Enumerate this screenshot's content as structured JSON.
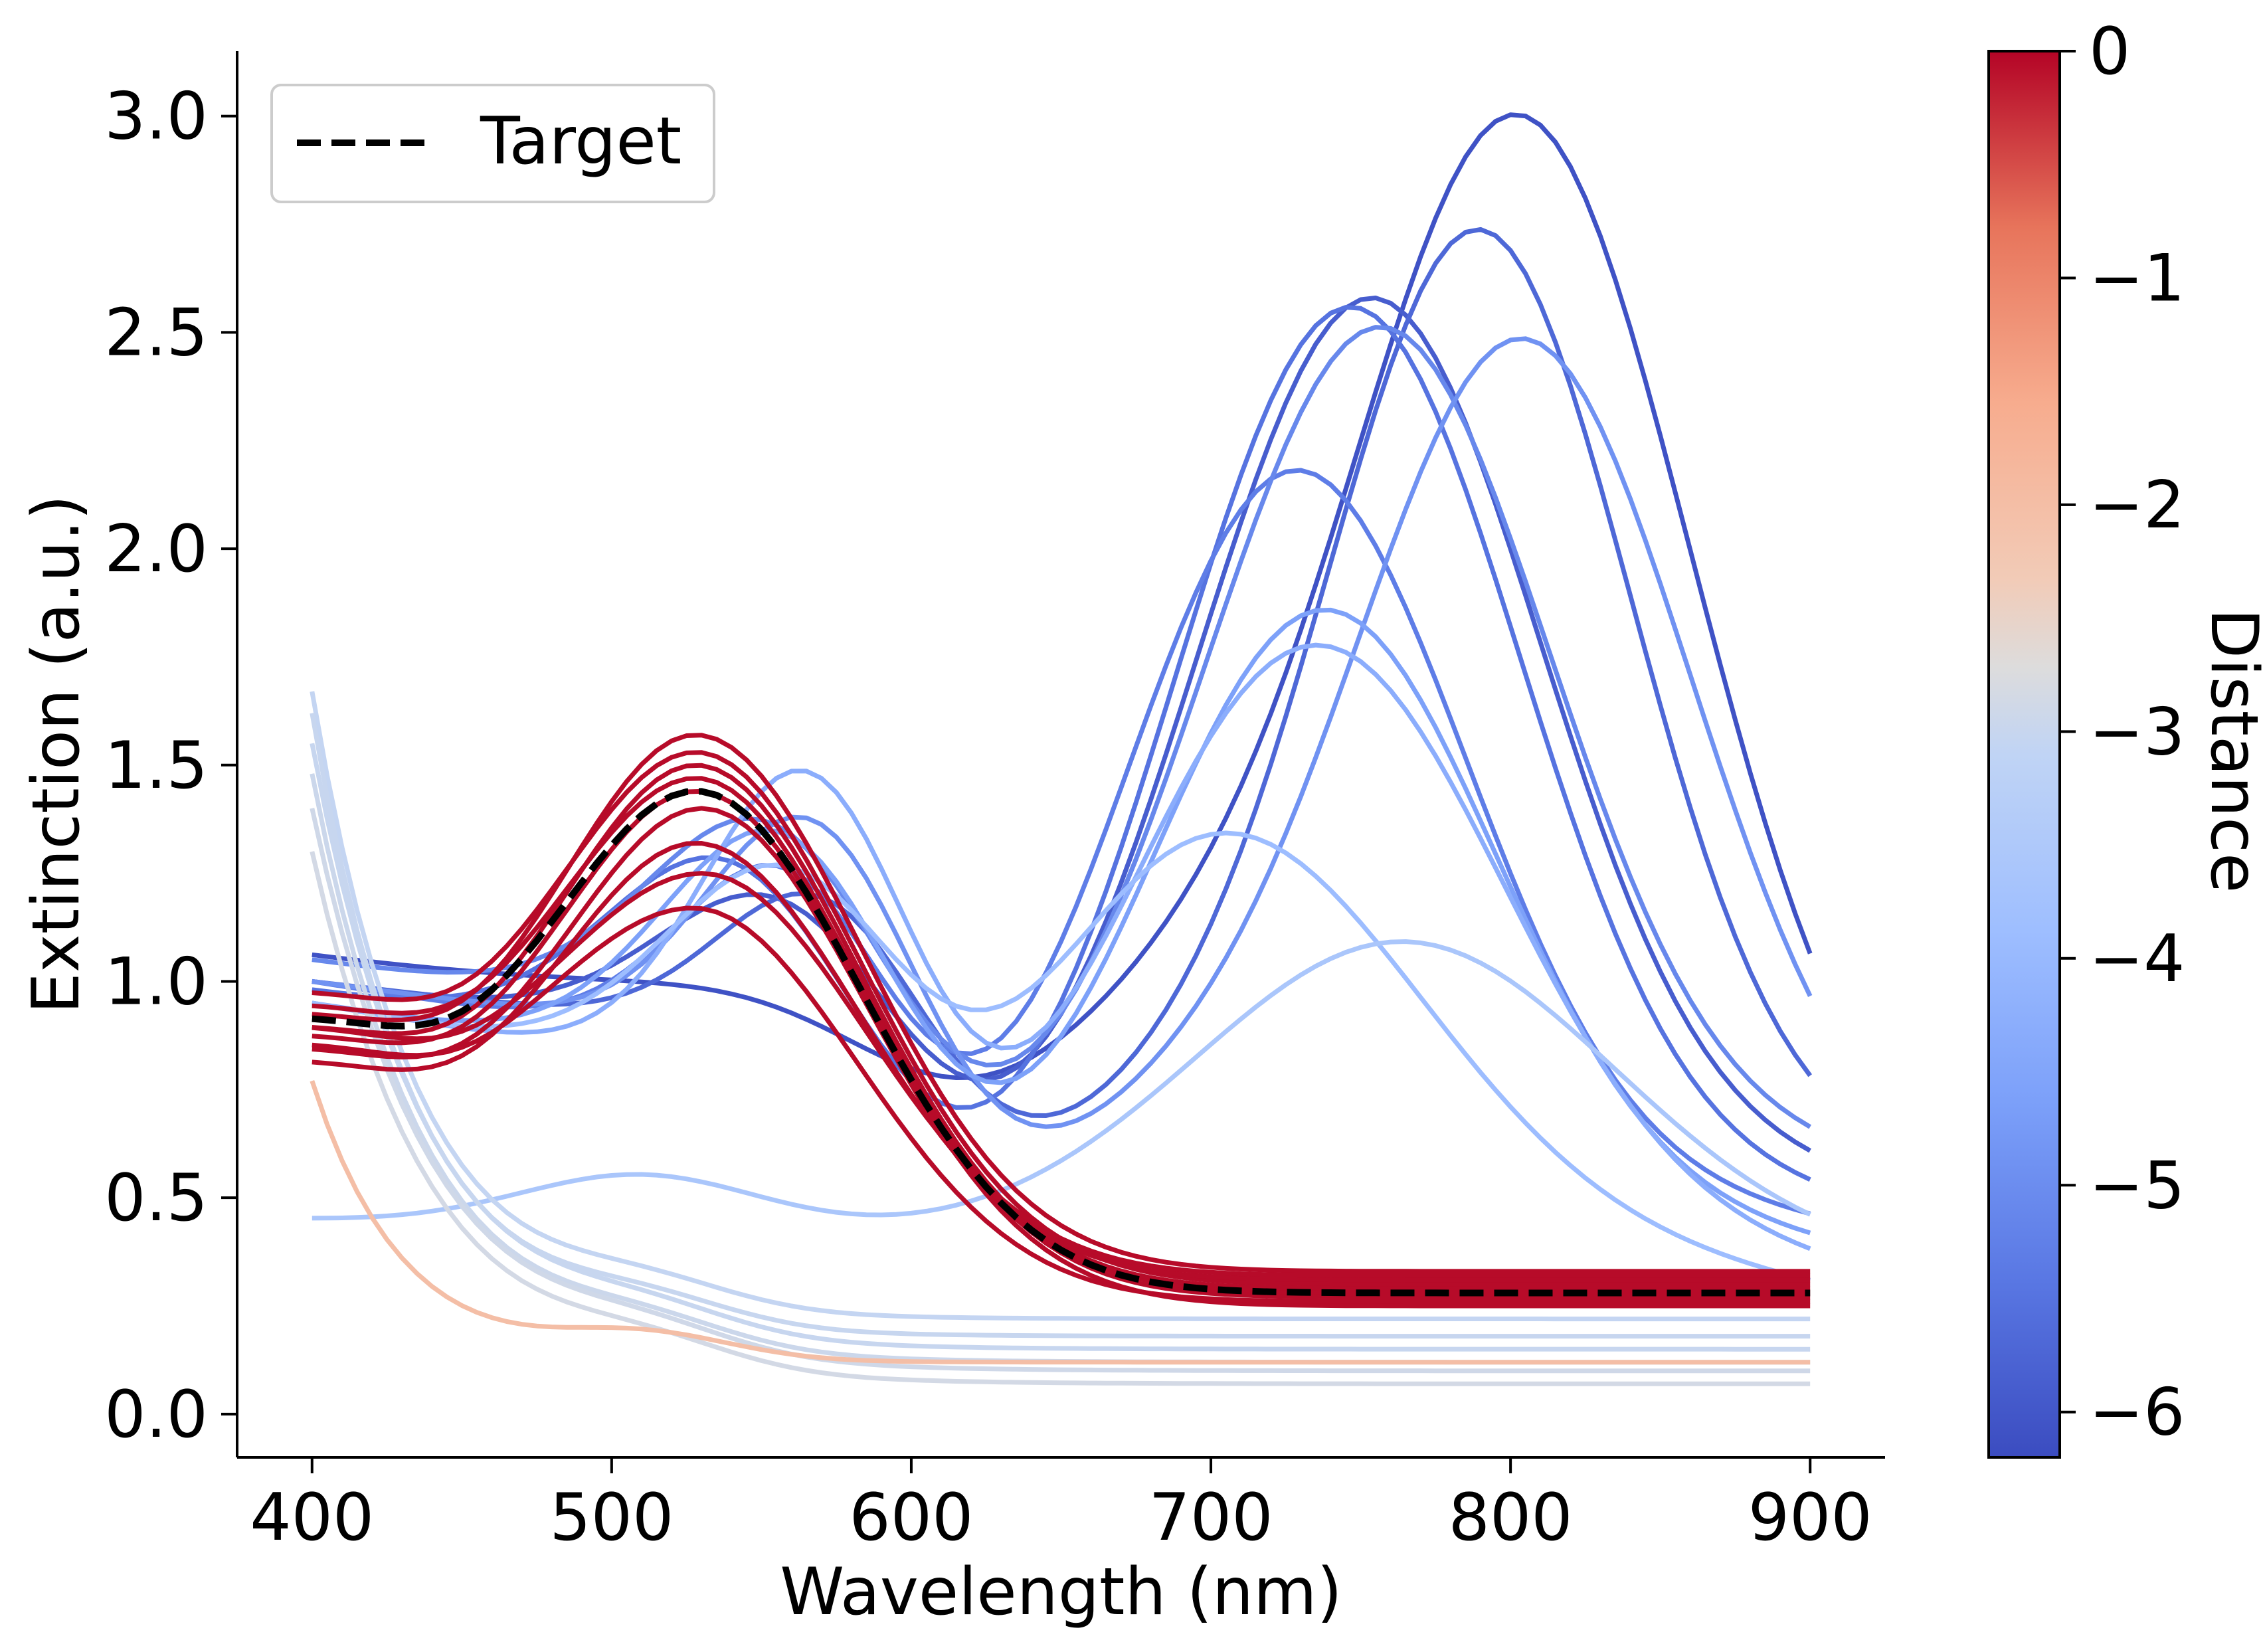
{
  "chart_data": {
    "type": "line",
    "xlabel": "Wavelength (nm)",
    "ylabel": "Extinction (a.u.)",
    "xlim": [
      375,
      925
    ],
    "ylim": [
      -0.1,
      3.15
    ],
    "x_ticks": [
      "400",
      "500",
      "600",
      "700",
      "800",
      "900"
    ],
    "x_tick_values": [
      400,
      500,
      600,
      700,
      800,
      900
    ],
    "y_ticks": [
      "0.0",
      "0.5",
      "1.0",
      "1.5",
      "2.0",
      "2.5",
      "3.0"
    ],
    "y_tick_values": [
      0,
      0.5,
      1.0,
      1.5,
      2.0,
      2.5,
      3.0
    ],
    "grid": false,
    "legend": {
      "placement": "top-left",
      "entries": [
        "Target"
      ]
    },
    "colorbar": {
      "label": "Distance",
      "range": [
        -6.2,
        0
      ],
      "ticks": [
        "0",
        "−1",
        "−2",
        "−3",
        "−4",
        "−5",
        "−6"
      ],
      "tick_values": [
        0,
        -1,
        -2,
        -3,
        -4,
        -5,
        -6
      ],
      "colormap": "coolwarm"
    },
    "series": [
      {
        "distance": -6.1,
        "base": 1.05,
        "baseline_end": 0.5,
        "peaks": [
          [
            700,
            1.0,
            120
          ],
          [
            805,
            2.95,
            55
          ]
        ]
      },
      {
        "distance": -5.9,
        "base": 1.0,
        "baseline_end": 0.55,
        "peaks": [
          [
            560,
            1.1,
            40
          ],
          [
            755,
            2.6,
            55
          ]
        ]
      },
      {
        "distance": -5.7,
        "base": 1.0,
        "baseline_end": 0.6,
        "peaks": [
          [
            575,
            1.15,
            35
          ],
          [
            790,
            2.75,
            50
          ]
        ]
      },
      {
        "distance": -5.5,
        "base": 0.98,
        "baseline_end": 0.5,
        "peaks": [
          [
            540,
            1.15,
            40
          ],
          [
            748,
            2.6,
            55
          ]
        ]
      },
      {
        "distance": -5.3,
        "base": 1.0,
        "baseline_end": 0.45,
        "peaks": [
          [
            560,
            1.2,
            35
          ],
          [
            730,
            2.25,
            55
          ]
        ]
      },
      {
        "distance": -5.1,
        "base": 1.05,
        "baseline_end": 0.6,
        "peaks": [
          [
            555,
            1.25,
            40
          ],
          [
            758,
            2.52,
            55
          ]
        ]
      },
      {
        "distance": -4.9,
        "base": 1.0,
        "baseline_end": 0.55,
        "peaks": [
          [
            570,
            1.33,
            35
          ],
          [
            805,
            2.55,
            55
          ]
        ]
      },
      {
        "distance": -4.6,
        "base": 0.95,
        "baseline_end": 0.4,
        "peaks": [
          [
            560,
            1.3,
            40
          ],
          [
            740,
            1.95,
            55
          ]
        ]
      },
      {
        "distance": -4.3,
        "base": 0.95,
        "baseline_end": 0.35,
        "peaks": [
          [
            568,
            1.48,
            35
          ],
          [
            738,
            1.9,
            60
          ]
        ]
      },
      {
        "distance": -3.9,
        "base": 0.95,
        "baseline_end": 0.3,
        "peaks": [
          [
            560,
            1.2,
            40
          ],
          [
            705,
            1.48,
            65
          ]
        ]
      },
      {
        "distance": -3.6,
        "base": 0.45,
        "baseline_end": 0.35,
        "peaks": [
          [
            510,
            0.44,
            40
          ],
          [
            765,
            1.03,
            70
          ]
        ]
      },
      {
        "distance": -3.05,
        "start": 1.67,
        "end": 0.22,
        "decay": 35
      },
      {
        "distance": -3.0,
        "start": 1.62,
        "end": 0.18,
        "decay": 35
      },
      {
        "distance": -3.0,
        "start": 1.55,
        "end": 0.15,
        "decay": 38
      },
      {
        "distance": -2.95,
        "start": 1.48,
        "end": 0.12,
        "decay": 38
      },
      {
        "distance": -2.9,
        "start": 1.4,
        "end": 0.1,
        "decay": 40
      },
      {
        "distance": -2.85,
        "start": 1.3,
        "end": 0.07,
        "decay": 40
      },
      {
        "distance": -2.0,
        "start": 0.77,
        "end": 0.12,
        "decay": 30
      },
      {
        "distance": -0.05,
        "base": 0.93,
        "peak": [
          528,
          1.57
        ],
        "tail": 0.33
      },
      {
        "distance": -0.05,
        "base": 0.98,
        "peak": [
          528,
          1.53
        ],
        "tail": 0.3
      },
      {
        "distance": -0.05,
        "base": 0.9,
        "peak": [
          528,
          1.5
        ],
        "tail": 0.28
      },
      {
        "distance": -0.05,
        "base": 0.95,
        "peak": [
          528,
          1.47
        ],
        "tail": 0.27
      },
      {
        "distance": -0.05,
        "base": 0.88,
        "peak": [
          528,
          1.44
        ],
        "tail": 0.29
      },
      {
        "distance": -0.05,
        "base": 0.85,
        "peak": [
          530,
          1.4
        ],
        "tail": 0.25
      },
      {
        "distance": -0.05,
        "base": 0.82,
        "peak": [
          528,
          1.32
        ],
        "tail": 0.31
      },
      {
        "distance": -0.05,
        "base": 0.9,
        "peak": [
          530,
          1.25
        ],
        "tail": 0.32
      },
      {
        "distance": -0.05,
        "base": 0.86,
        "peak": [
          527,
          1.17
        ],
        "tail": 0.26
      }
    ],
    "target": {
      "name": "Target",
      "base": 0.92,
      "peak": [
        528,
        1.44
      ],
      "tail": 0.28,
      "style": "dashed"
    }
  }
}
